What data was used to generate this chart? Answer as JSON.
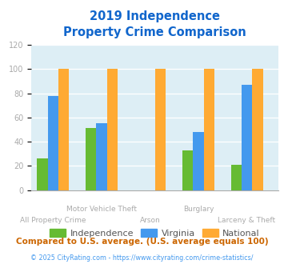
{
  "title_line1": "2019 Independence",
  "title_line2": "Property Crime Comparison",
  "categories": [
    "All Property Crime",
    "Motor Vehicle Theft",
    "Arson",
    "Burglary",
    "Larceny & Theft"
  ],
  "independence": [
    26,
    51,
    0,
    33,
    21
  ],
  "virginia": [
    78,
    55,
    0,
    48,
    87
  ],
  "national": [
    100,
    100,
    100,
    100,
    100
  ],
  "independence_color": "#66bb33",
  "virginia_color": "#4499ee",
  "national_color": "#ffaa33",
  "ylim": [
    0,
    120
  ],
  "yticks": [
    0,
    20,
    40,
    60,
    80,
    100,
    120
  ],
  "legend_labels": [
    "Independence",
    "Virginia",
    "National"
  ],
  "footnote1": "Compared to U.S. average. (U.S. average equals 100)",
  "footnote2": "© 2025 CityRating.com - https://www.cityrating.com/crime-statistics/",
  "fig_bg_color": "#ffffff",
  "plot_bg_color": "#ddeef5",
  "title_color": "#1166cc",
  "footnote1_color": "#cc6600",
  "footnote2_color": "#4499ee",
  "tick_color": "#aaaaaa",
  "xlabel_color": "#aaaaaa",
  "bar_width": 0.22,
  "group_positions": [
    1,
    2,
    3,
    4,
    5
  ]
}
